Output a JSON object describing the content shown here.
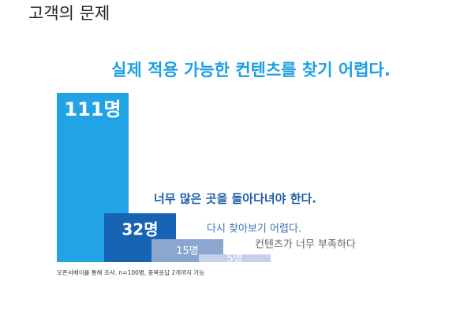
{
  "header": {
    "title": "고객의 문제"
  },
  "chart_data": {
    "type": "bar",
    "categories": [
      "실제 적용 가능한 컨텐츠를 찾기 어렵다.",
      "너무 많은 곳을 돌아다녀야 한다.",
      "다시 찾아보기 어렵다.",
      "컨텐츠가 너무 부족하다"
    ],
    "values": [
      111,
      32,
      15,
      5
    ],
    "value_labels": [
      "111명",
      "32명",
      "15명",
      "5명"
    ],
    "colors": [
      "#22a3e6",
      "#1763b4",
      "#8ba7d0",
      "#c3d2ea"
    ],
    "note": "오픈서베이를 통해 조사. n=100명, 중복응답 2개까지 가능"
  }
}
